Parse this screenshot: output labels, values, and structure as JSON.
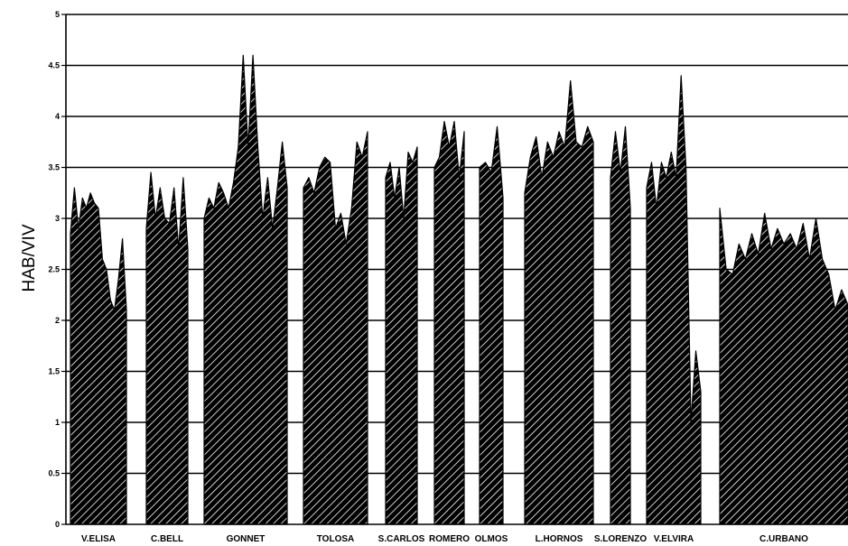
{
  "chart_data": {
    "type": "area",
    "title": "",
    "xlabel": "",
    "ylabel": "HAB/VIV",
    "ylim": [
      0,
      5
    ],
    "yticks": [
      "0",
      "0.5",
      "1",
      "1.5",
      "2",
      "2.5",
      "3",
      "3.5",
      "4",
      "4.5",
      "5"
    ],
    "grid": true,
    "colors": {
      "fill": "#000000",
      "hatch": "#ffffff",
      "line": "#000000"
    },
    "series": [
      {
        "name": "V.ELISA",
        "values": [
          2.85,
          3.3,
          2.9,
          3.2,
          3.1,
          3.25,
          3.15,
          3.1,
          2.6,
          2.5,
          2.2,
          2.1,
          2.4,
          2.8,
          2.1
        ]
      },
      {
        "name": "C.BELL",
        "values": [
          2.9,
          3.45,
          3.0,
          3.3,
          3.0,
          2.95,
          3.3,
          2.7,
          3.4,
          2.7
        ]
      },
      {
        "name": "GONNET",
        "values": [
          3.0,
          3.2,
          3.1,
          3.35,
          3.25,
          3.1,
          3.35,
          3.7,
          4.6,
          3.7,
          4.6,
          3.7,
          3.0,
          3.4,
          2.9,
          3.3,
          3.75,
          3.3
        ]
      },
      {
        "name": "TOLOSA",
        "values": [
          3.3,
          3.4,
          3.25,
          3.5,
          3.6,
          3.55,
          2.9,
          3.05,
          2.75,
          3.1,
          3.75,
          3.6,
          3.85
        ]
      },
      {
        "name": "S.CARLOS",
        "values": [
          3.4,
          3.55,
          3.2,
          3.5,
          3.0,
          3.65,
          3.55,
          3.7
        ]
      },
      {
        "name": "ROMERO",
        "values": [
          3.5,
          3.6,
          3.95,
          3.7,
          3.95,
          3.4,
          3.85
        ]
      },
      {
        "name": "OLMOS",
        "values": [
          3.5,
          3.55,
          3.45,
          3.9,
          3.2
        ]
      },
      {
        "name": "L.HORNOS",
        "values": [
          3.25,
          3.6,
          3.8,
          3.4,
          3.75,
          3.6,
          3.85,
          3.7,
          4.35,
          3.75,
          3.7,
          3.9,
          3.75
        ]
      },
      {
        "name": "S.LORENZO",
        "values": [
          3.4,
          3.85,
          3.45,
          3.9,
          3.1
        ]
      },
      {
        "name": "V.ELVIRA",
        "values": [
          3.3,
          3.55,
          3.1,
          3.55,
          3.4,
          3.65,
          3.4,
          4.4,
          3.5,
          1.0,
          1.7,
          1.3
        ]
      },
      {
        "name": "C.URBANO",
        "values": [
          3.1,
          2.5,
          2.45,
          2.75,
          2.6,
          2.85,
          2.65,
          3.05,
          2.7,
          2.9,
          2.75,
          2.85,
          2.7,
          2.95,
          2.6,
          3.0,
          2.6,
          2.45,
          2.1,
          2.3,
          2.15
        ]
      }
    ]
  }
}
